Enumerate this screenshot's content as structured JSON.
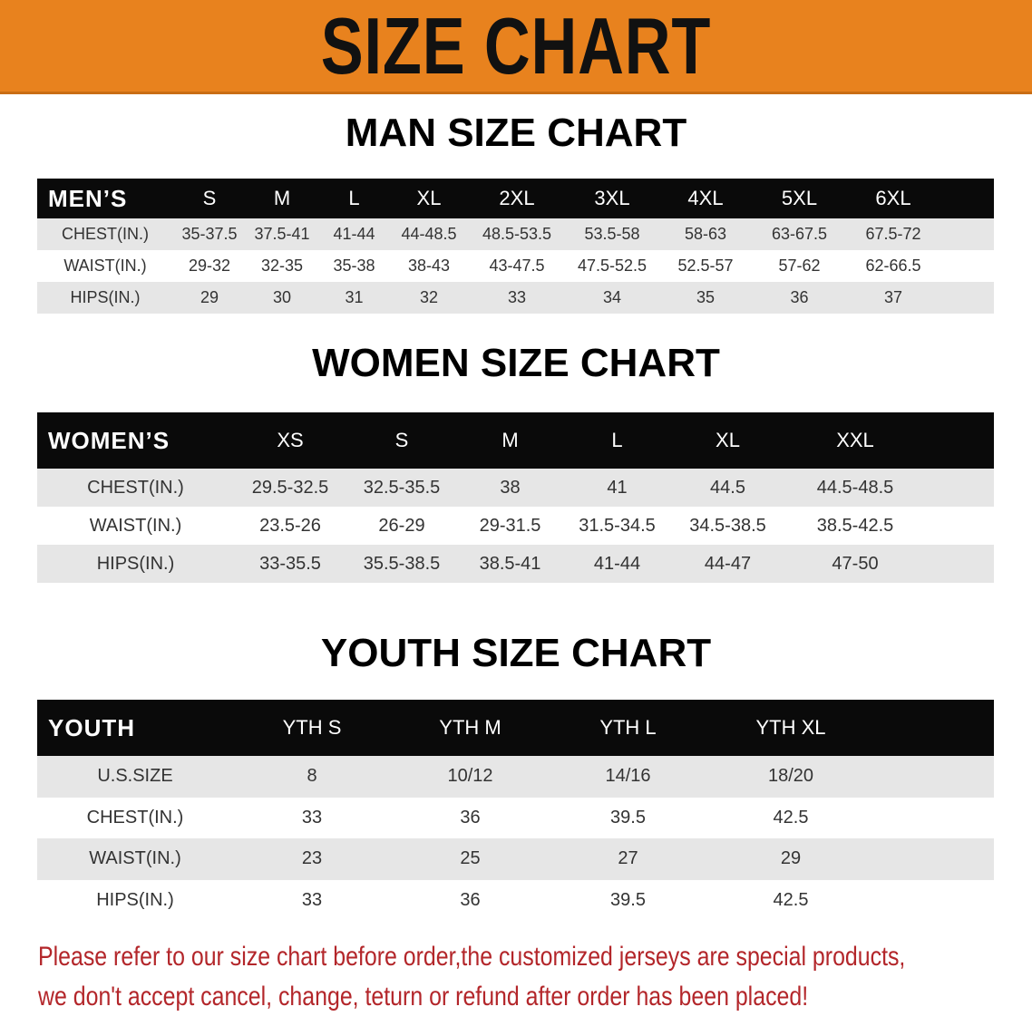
{
  "title": "SIZE CHART",
  "colors": {
    "banner": "#e8821e",
    "header_row": "#0a0a0a",
    "alt_row": "#e6e6e6",
    "note": "#b3262a"
  },
  "men": {
    "title": "MAN SIZE CHART",
    "header": [
      "MEN’S",
      "S",
      "M",
      "L",
      "XL",
      "2XL",
      "3XL",
      "4XL",
      "5XL",
      "6XL"
    ],
    "rows": [
      [
        "CHEST(IN.)",
        "35-37.5",
        "37.5-41",
        "41-44",
        "44-48.5",
        "48.5-53.5",
        "53.5-58",
        "58-63",
        "63-67.5",
        "67.5-72"
      ],
      [
        "WAIST(IN.)",
        "29-32",
        "32-35",
        "35-38",
        "38-43",
        "43-47.5",
        "47.5-52.5",
        "52.5-57",
        "57-62",
        "62-66.5"
      ],
      [
        "HIPS(IN.)",
        "29",
        "30",
        "31",
        "32",
        "33",
        "34",
        "35",
        "36",
        "37"
      ]
    ]
  },
  "women": {
    "title": "WOMEN SIZE CHART",
    "header": [
      "WOMEN’S",
      "XS",
      "S",
      "M",
      "L",
      "XL",
      "XXL"
    ],
    "rows": [
      [
        "CHEST(IN.)",
        "29.5-32.5",
        "32.5-35.5",
        "38",
        "41",
        "44.5",
        "44.5-48.5"
      ],
      [
        "WAIST(IN.)",
        "23.5-26",
        "26-29",
        "29-31.5",
        "31.5-34.5",
        "34.5-38.5",
        "38.5-42.5"
      ],
      [
        "HIPS(IN.)",
        "33-35.5",
        "35.5-38.5",
        "38.5-41",
        "41-44",
        "44-47",
        "47-50"
      ]
    ]
  },
  "youth": {
    "title": "YOUTH SIZE CHART",
    "header": [
      "YOUTH",
      "YTH S",
      "YTH M",
      "YTH L",
      "YTH XL"
    ],
    "rows": [
      [
        "U.S.SIZE",
        "8",
        "10/12",
        "14/16",
        "18/20"
      ],
      [
        "CHEST(IN.)",
        "33",
        "36",
        "39.5",
        "42.5"
      ],
      [
        "WAIST(IN.)",
        "23",
        "25",
        "27",
        "29"
      ],
      [
        "HIPS(IN.)",
        "33",
        "36",
        "39.5",
        "42.5"
      ]
    ]
  },
  "note": [
    "Please refer to our size chart before order,the customized jerseys are special products,",
    "we don't accept cancel, change, teturn or refund after order has been placed!"
  ]
}
